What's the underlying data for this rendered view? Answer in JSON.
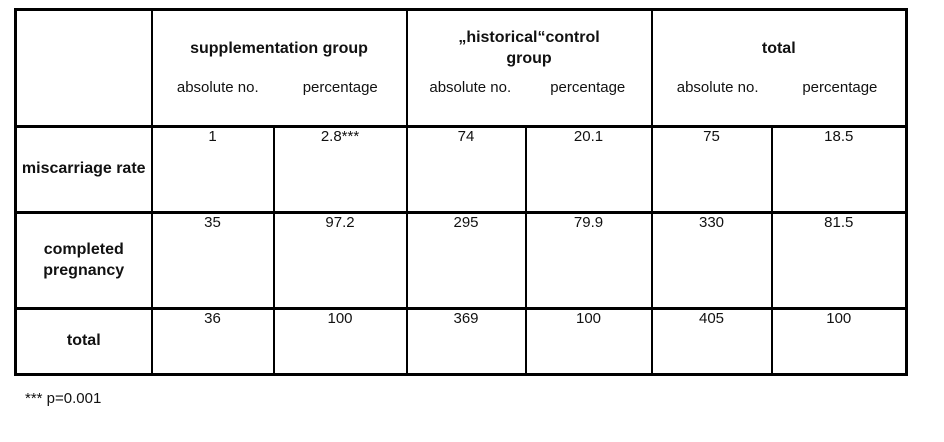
{
  "table": {
    "corner_label": "",
    "groups": [
      {
        "title": "supplementation group",
        "subheaders": [
          "absolute no.",
          "percentage"
        ]
      },
      {
        "title": "„historical“control group",
        "subheaders": [
          "absolute no.",
          "percentage"
        ]
      },
      {
        "title": "total",
        "subheaders": [
          "absolute no.",
          "percentage"
        ]
      }
    ],
    "rows": [
      {
        "label": "miscarriage rate",
        "values": [
          "1",
          "2.8***",
          "74",
          "20.1",
          "75",
          "18.5"
        ]
      },
      {
        "label": "completed pregnancy",
        "values": [
          "35",
          "97.2",
          "295",
          "79.9",
          "330",
          "81.5"
        ]
      },
      {
        "label": "total",
        "values": [
          "36",
          "100",
          "369",
          "100",
          "405",
          "100"
        ]
      }
    ]
  },
  "footnote": "*** p=0.001",
  "colors": {
    "border": "#000000",
    "text": "#111111",
    "background": "#ffffff"
  }
}
